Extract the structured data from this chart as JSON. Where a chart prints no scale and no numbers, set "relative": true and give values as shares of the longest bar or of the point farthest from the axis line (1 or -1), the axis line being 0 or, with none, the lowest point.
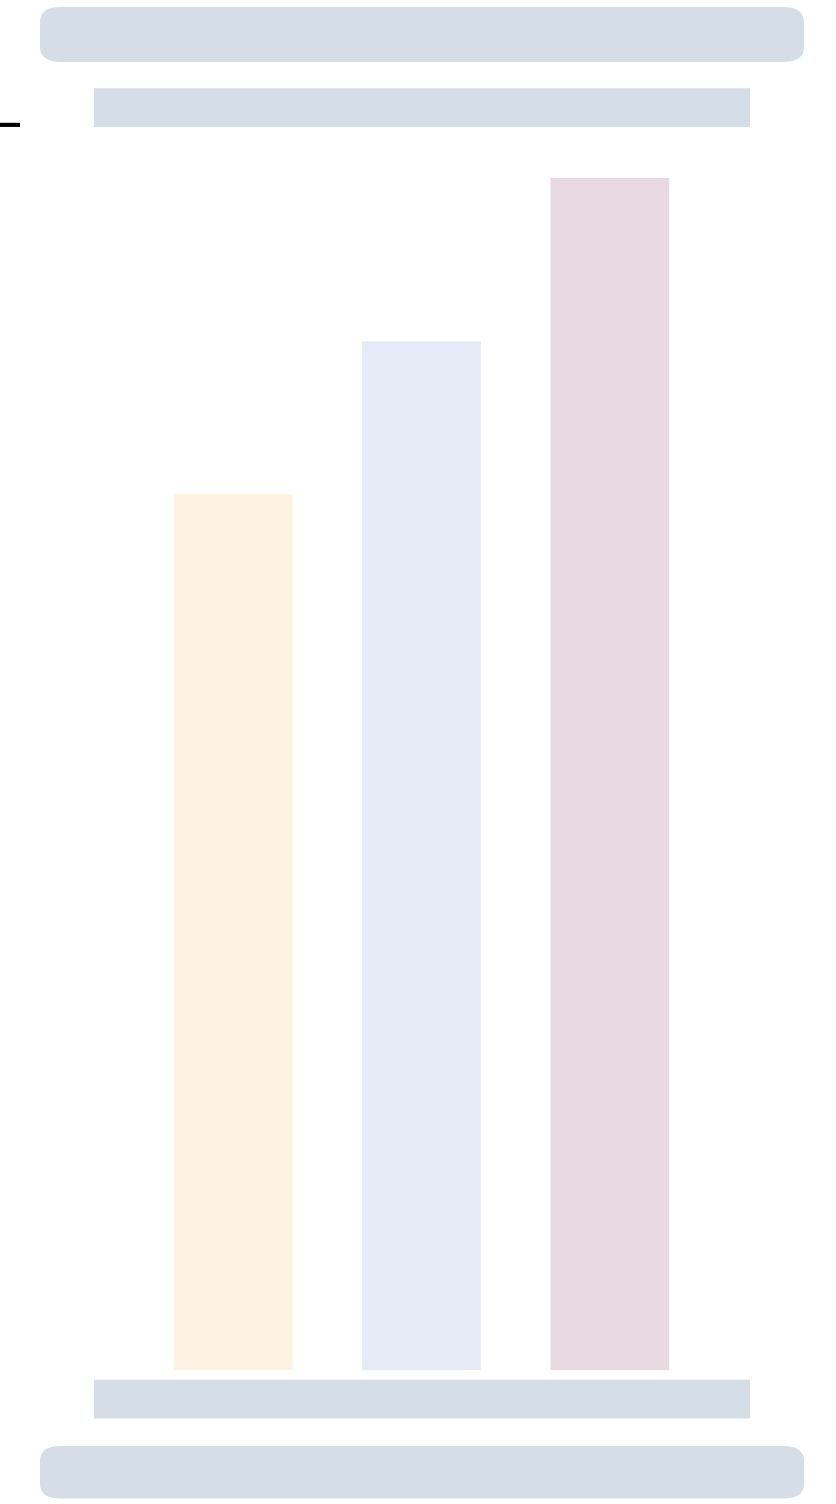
{
  "chart_data": {
    "type": "bar",
    "relative": true,
    "categories": [
      null,
      null,
      null
    ],
    "values": [
      0.735,
      0.863,
      1
    ],
    "colors": [
      "#fcf3e3",
      "#e6eaf6",
      "#e8d8e0"
    ]
  }
}
